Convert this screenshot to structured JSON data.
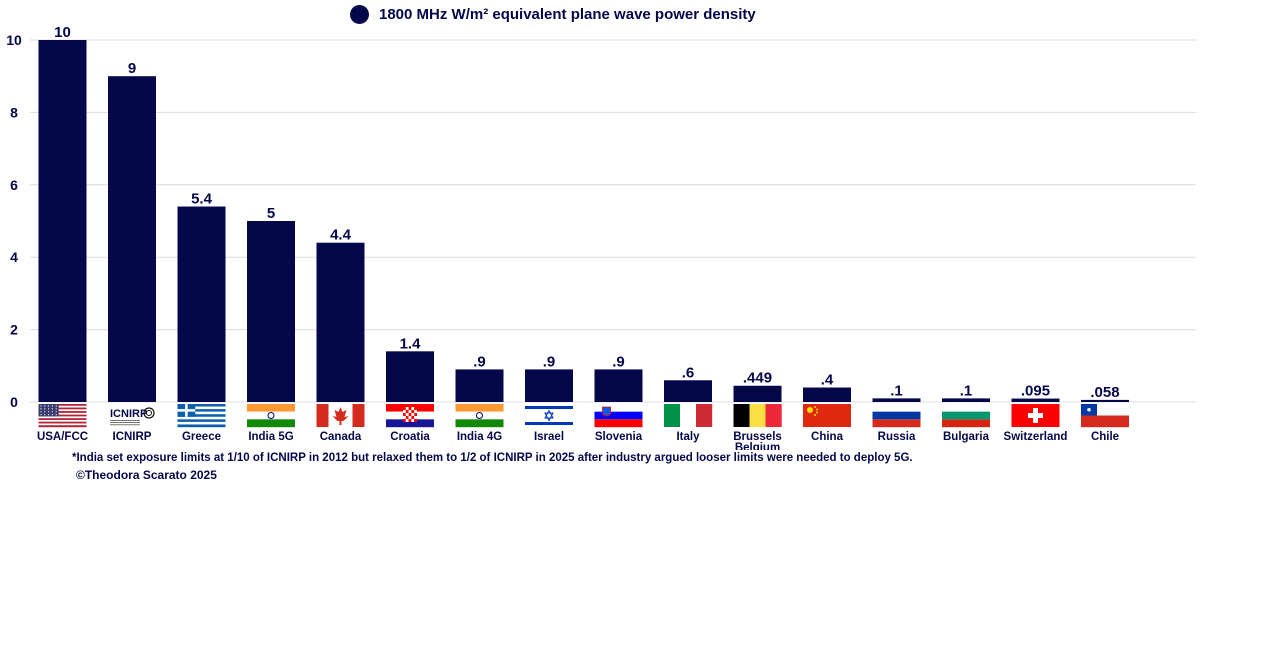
{
  "chart_data": {
    "type": "bar",
    "title": "",
    "legend": {
      "label": "1800 MHz W/m² equivalent plane wave power density",
      "color": "#05074b",
      "position": "top-center"
    },
    "xlabel": "",
    "ylabel": "",
    "ylim": [
      0,
      10
    ],
    "yticks": [
      0,
      2,
      4,
      6,
      8,
      10
    ],
    "grid": true,
    "bar_color": "#05074b",
    "categories": [
      {
        "name": "USA/FCC",
        "label": "USA/FCC",
        "value": 10,
        "value_label": "10",
        "flag": "usa-flag"
      },
      {
        "name": "ICNIRP",
        "label": "ICNIRP",
        "value": 9,
        "value_label": "9",
        "flag": "icnirp-logo",
        "logo_text": "ICNIRP"
      },
      {
        "name": "Greece",
        "label": "Greece",
        "value": 5.4,
        "value_label": "5.4",
        "flag": "greece-flag"
      },
      {
        "name": "India 5G",
        "label": "India 5G",
        "value": 5,
        "value_label": "5",
        "flag": "india-flag"
      },
      {
        "name": "Canada",
        "label": "Canada",
        "value": 4.4,
        "value_label": "4.4",
        "flag": "canada-flag"
      },
      {
        "name": "Croatia",
        "label": "Croatia",
        "value": 1.4,
        "value_label": "1.4",
        "flag": "croatia-flag"
      },
      {
        "name": "India 4G",
        "label": "India 4G",
        "value": 0.9,
        "value_label": ".9",
        "flag": "india-flag"
      },
      {
        "name": "Israel",
        "label": "Israel",
        "value": 0.9,
        "value_label": ".9",
        "flag": "israel-flag"
      },
      {
        "name": "Slovenia",
        "label": "Slovenia",
        "value": 0.9,
        "value_label": ".9",
        "flag": "slovenia-flag"
      },
      {
        "name": "Italy",
        "label": "Italy",
        "value": 0.6,
        "value_label": ".6",
        "flag": "italy-flag"
      },
      {
        "name": "Brussels Belgium",
        "label": "Brussels",
        "label2": "Belgium",
        "value": 0.449,
        "value_label": ".449",
        "flag": "belgium-flag"
      },
      {
        "name": "China",
        "label": "China",
        "value": 0.4,
        "value_label": ".4",
        "flag": "china-flag"
      },
      {
        "name": "Russia",
        "label": "Russia",
        "value": 0.1,
        "value_label": ".1",
        "flag": "russia-flag"
      },
      {
        "name": "Bulgaria",
        "label": "Bulgaria",
        "value": 0.1,
        "value_label": ".1",
        "flag": "bulgaria-flag"
      },
      {
        "name": "Switzerland",
        "label": "Switzerland",
        "value": 0.095,
        "value_label": ".095",
        "flag": "switzerland-flag"
      },
      {
        "name": "Chile",
        "label": "Chile",
        "value": 0.058,
        "value_label": ".058",
        "flag": "chile-flag"
      }
    ]
  },
  "footnote": "*India set exposure limits at 1/10 of ICNIRP in 2012 but relaxed them to 1/2 of ICNIRP in 2025 after industry argued looser limits were needed to deploy 5G.",
  "copyright": "©Theodora Scarato 2025"
}
